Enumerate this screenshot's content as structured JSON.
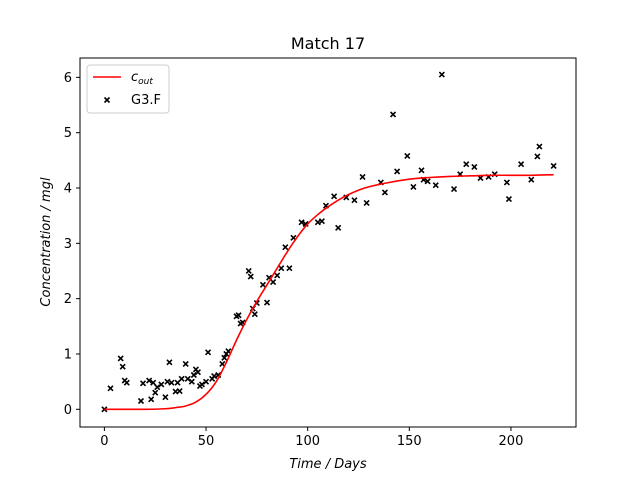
{
  "chart_data": {
    "type": "scatter",
    "title": "Match 17",
    "xlabel": "Time / Days",
    "ylabel": "Concentration / mgl",
    "xlim": [
      -12,
      232
    ],
    "ylim": [
      -0.32,
      6.35
    ],
    "xticks": [
      0,
      50,
      100,
      150,
      200
    ],
    "yticks": [
      0,
      1,
      2,
      3,
      4,
      5,
      6
    ],
    "legend": {
      "placement": "top-left",
      "entries": [
        {
          "label_main": "c",
          "label_sub": "out",
          "style": "line",
          "color": "#ff0000"
        },
        {
          "label": "G3.F",
          "style": "x-marker",
          "color": "#000000"
        }
      ]
    },
    "series": [
      {
        "name": "c_out",
        "kind": "line",
        "color": "#ff0000",
        "x": [
          0,
          10,
          20,
          30,
          35,
          40,
          45,
          50,
          55,
          60,
          65,
          70,
          75,
          80,
          85,
          90,
          95,
          100,
          105,
          110,
          115,
          120,
          125,
          130,
          140,
          150,
          160,
          170,
          180,
          190,
          200,
          210,
          221
        ],
        "y": [
          0,
          0,
          0,
          0.01,
          0.03,
          0.06,
          0.13,
          0.27,
          0.5,
          0.85,
          1.25,
          1.62,
          1.95,
          2.25,
          2.55,
          2.85,
          3.12,
          3.35,
          3.52,
          3.66,
          3.78,
          3.88,
          3.96,
          4.02,
          4.1,
          4.16,
          4.19,
          4.21,
          4.22,
          4.23,
          4.23,
          4.23,
          4.24
        ]
      },
      {
        "name": "G3.F",
        "kind": "scatter",
        "color": "#000000",
        "points": [
          [
            0,
            0.0
          ],
          [
            3,
            0.38
          ],
          [
            8,
            0.92
          ],
          [
            9,
            0.77
          ],
          [
            10,
            0.52
          ],
          [
            11,
            0.48
          ],
          [
            18,
            0.15
          ],
          [
            19,
            0.47
          ],
          [
            22,
            0.52
          ],
          [
            23,
            0.18
          ],
          [
            24,
            0.48
          ],
          [
            25,
            0.3
          ],
          [
            26,
            0.4
          ],
          [
            28,
            0.45
          ],
          [
            30,
            0.22
          ],
          [
            31,
            0.5
          ],
          [
            32,
            0.85
          ],
          [
            33,
            0.48
          ],
          [
            35,
            0.32
          ],
          [
            36,
            0.48
          ],
          [
            37,
            0.33
          ],
          [
            38,
            0.55
          ],
          [
            40,
            0.82
          ],
          [
            41,
            0.55
          ],
          [
            43,
            0.5
          ],
          [
            44,
            0.62
          ],
          [
            45,
            0.72
          ],
          [
            46,
            0.67
          ],
          [
            47,
            0.42
          ],
          [
            48,
            0.45
          ],
          [
            50,
            0.5
          ],
          [
            51,
            1.03
          ],
          [
            53,
            0.55
          ],
          [
            54,
            0.6
          ],
          [
            56,
            0.62
          ],
          [
            58,
            0.82
          ],
          [
            59,
            0.93
          ],
          [
            60,
            1.0
          ],
          [
            61,
            1.05
          ],
          [
            65,
            1.68
          ],
          [
            66,
            1.7
          ],
          [
            67,
            1.55
          ],
          [
            68,
            1.57
          ],
          [
            71,
            2.5
          ],
          [
            72,
            2.4
          ],
          [
            73,
            1.82
          ],
          [
            74,
            1.72
          ],
          [
            75,
            1.92
          ],
          [
            78,
            2.25
          ],
          [
            80,
            1.93
          ],
          [
            81,
            2.38
          ],
          [
            83,
            2.3
          ],
          [
            85,
            2.42
          ],
          [
            87,
            2.55
          ],
          [
            89,
            2.93
          ],
          [
            91,
            2.55
          ],
          [
            93,
            3.1
          ],
          [
            97,
            3.38
          ],
          [
            99,
            3.35
          ],
          [
            105,
            3.38
          ],
          [
            107,
            3.4
          ],
          [
            109,
            3.68
          ],
          [
            113,
            3.85
          ],
          [
            115,
            3.28
          ],
          [
            119,
            3.83
          ],
          [
            123,
            3.78
          ],
          [
            127,
            4.2
          ],
          [
            129,
            3.73
          ],
          [
            136,
            4.1
          ],
          [
            138,
            3.92
          ],
          [
            142,
            5.33
          ],
          [
            144,
            4.3
          ],
          [
            149,
            4.58
          ],
          [
            152,
            4.02
          ],
          [
            156,
            4.32
          ],
          [
            157,
            4.15
          ],
          [
            159,
            4.12
          ],
          [
            163,
            4.05
          ],
          [
            166,
            6.05
          ],
          [
            172,
            3.98
          ],
          [
            175,
            4.25
          ],
          [
            178,
            4.43
          ],
          [
            182,
            4.38
          ],
          [
            185,
            4.18
          ],
          [
            189,
            4.2
          ],
          [
            192,
            4.25
          ],
          [
            198,
            4.1
          ],
          [
            199,
            3.8
          ],
          [
            205,
            4.43
          ],
          [
            210,
            4.15
          ],
          [
            213,
            4.57
          ],
          [
            214,
            4.75
          ],
          [
            221,
            4.4
          ]
        ]
      }
    ]
  }
}
